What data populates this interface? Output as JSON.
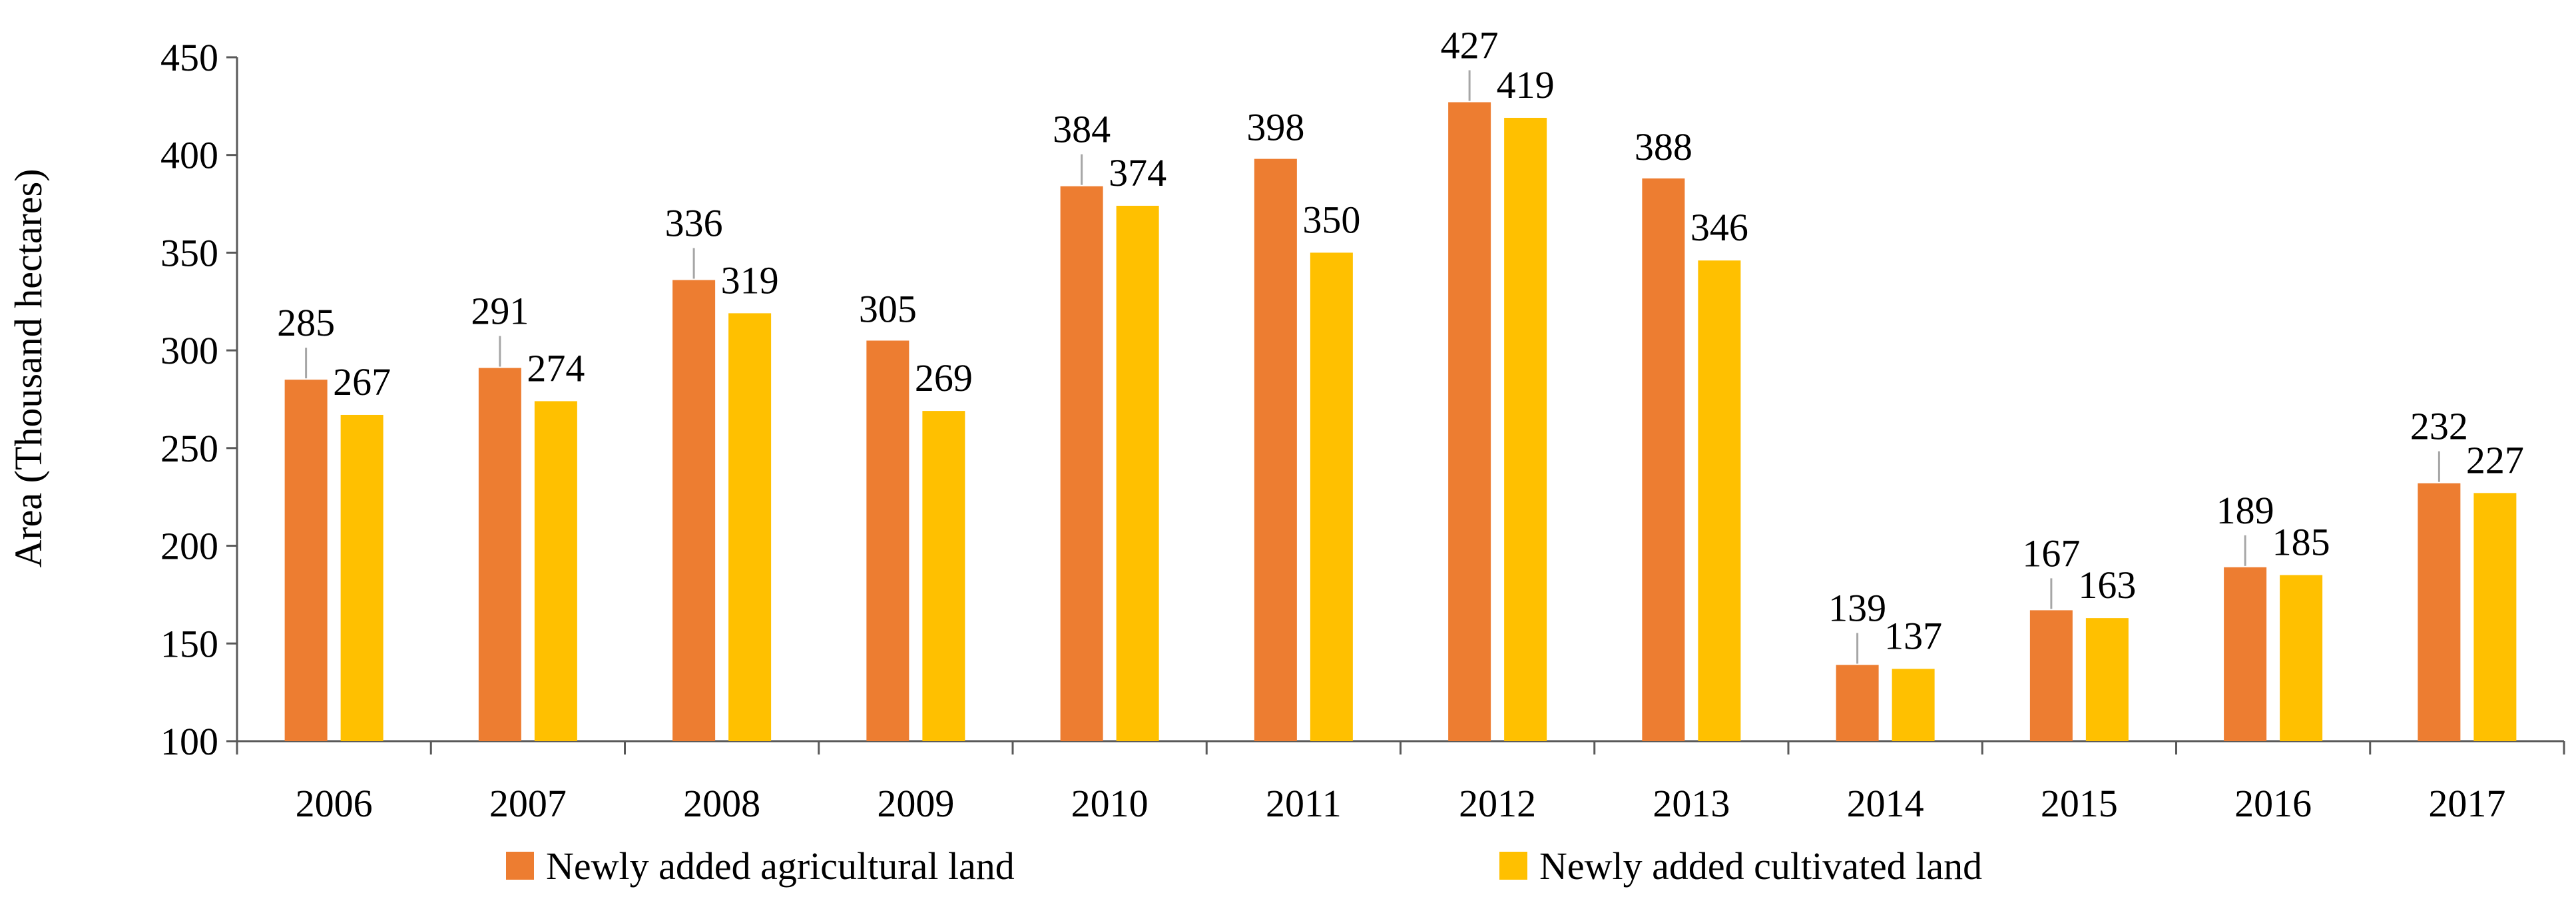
{
  "chart_data": {
    "type": "bar",
    "title": "",
    "xlabel": "",
    "ylabel": "Area (Thousand hectares)",
    "ylim": [
      100,
      450
    ],
    "yticks": [
      100,
      150,
      200,
      250,
      300,
      350,
      400,
      450
    ],
    "grid": false,
    "legend_position": "bottom",
    "categories": [
      "2006",
      "2007",
      "2008",
      "2009",
      "2010",
      "2011",
      "2012",
      "2013",
      "2014",
      "2015",
      "2016",
      "2017"
    ],
    "series": [
      {
        "name": "Newly added agricultural land",
        "color": "#ED7D31",
        "values": [
          285,
          291,
          336,
          305,
          384,
          398,
          427,
          388,
          139,
          167,
          189,
          232
        ]
      },
      {
        "name": "Newly added cultivated land",
        "color": "#FFC000",
        "values": [
          267,
          274,
          319,
          269,
          374,
          350,
          419,
          346,
          137,
          163,
          185,
          227
        ]
      }
    ]
  }
}
